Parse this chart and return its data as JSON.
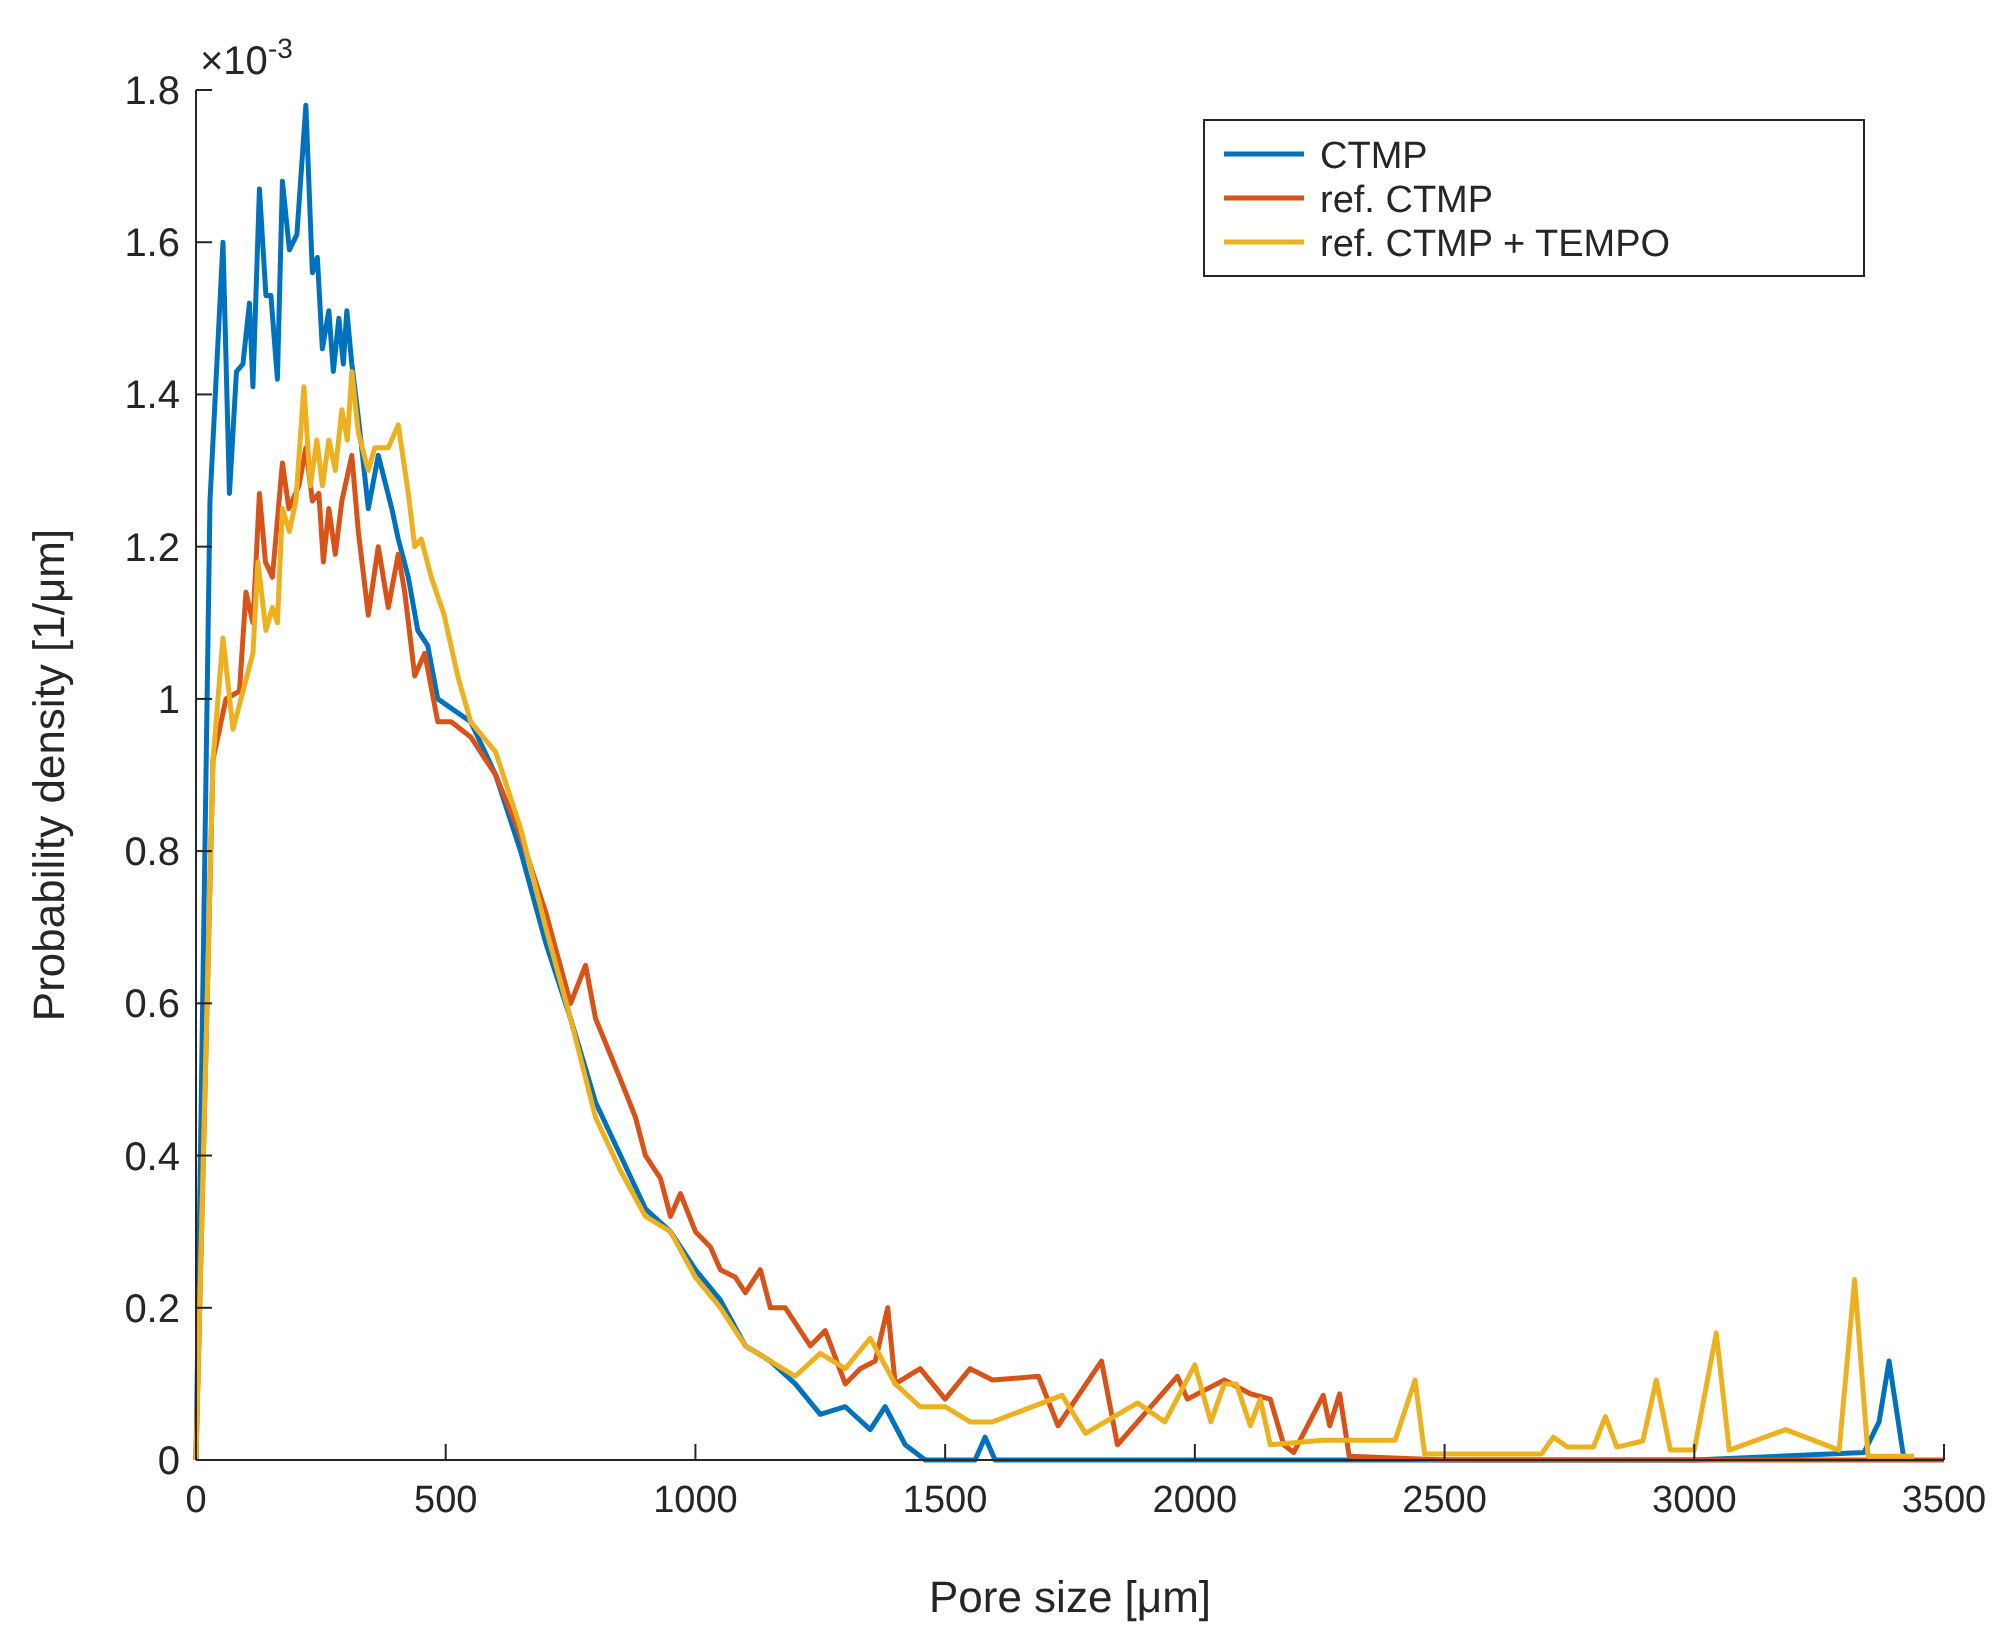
{
  "chart_data": {
    "type": "line",
    "xlabel": "Pore size [μm]",
    "ylabel": "Probability density [1/μm]",
    "annotations": [
      "×10$^{-3}$"
    ],
    "xlim": [
      0,
      3500
    ],
    "ylim": [
      0,
      1.8
    ],
    "xticks": [
      0,
      500,
      1000,
      1500,
      2000,
      2500,
      3000,
      3500
    ],
    "yticks": [
      0,
      0.2,
      0.4,
      0.6,
      0.8,
      1,
      1.2,
      1.4,
      1.6,
      1.8
    ],
    "grid": false,
    "legend": "top right",
    "marker": "none",
    "line_style": "solid",
    "series": [
      {
        "name": "CTMP",
        "color": "#0072bd",
        "x": [
          0,
          28,
          54,
          67,
          81,
          94,
          107,
          114,
          127,
          140,
          150,
          163,
          173,
          187,
          202,
          220,
          233,
          243,
          253,
          266,
          275,
          286,
          295,
          302,
          312,
          325,
          345,
          365,
          392,
          405,
          425,
          444,
          464,
          484,
          550,
          600,
          650,
          700,
          750,
          800,
          850,
          900,
          950,
          1000,
          1050,
          1100,
          1150,
          1200,
          1250,
          1300,
          1350,
          1380,
          1420,
          1460,
          1560,
          1580,
          1600,
          2000,
          2500,
          3000,
          3340,
          3370,
          3390,
          3420
        ],
        "values": [
          0,
          1.26,
          1.6,
          1.27,
          1.43,
          1.44,
          1.52,
          1.41,
          1.67,
          1.53,
          1.53,
          1.42,
          1.68,
          1.59,
          1.61,
          1.78,
          1.56,
          1.58,
          1.46,
          1.51,
          1.43,
          1.5,
          1.44,
          1.51,
          1.44,
          1.37,
          1.25,
          1.32,
          1.25,
          1.21,
          1.16,
          1.09,
          1.07,
          1.0,
          0.97,
          0.9,
          0.8,
          0.68,
          0.58,
          0.47,
          0.4,
          0.33,
          0.3,
          0.25,
          0.21,
          0.15,
          0.13,
          0.1,
          0.06,
          0.07,
          0.04,
          0.07,
          0.02,
          0,
          0,
          0.03,
          0,
          0,
          0,
          0,
          0.01,
          0.05,
          0.13,
          0
        ]
      },
      {
        "name": "ref. CTMP",
        "color": "#d95319",
        "x": [
          0,
          34,
          60,
          87,
          100,
          114,
          127,
          139,
          153,
          173,
          186,
          206,
          220,
          233,
          246,
          255,
          266,
          279,
          292,
          312,
          325,
          345,
          365,
          385,
          405,
          418,
          438,
          458,
          484,
          511,
          550,
          600,
          650,
          700,
          750,
          780,
          800,
          850,
          880,
          900,
          930,
          950,
          970,
          1000,
          1030,
          1050,
          1080,
          1100,
          1130,
          1150,
          1180,
          1200,
          1230,
          1260,
          1300,
          1330,
          1360,
          1385,
          1400,
          1450,
          1500,
          1550,
          1595,
          1687,
          1726,
          1813,
          1845,
          1965,
          1985,
          2059,
          2111,
          2151,
          2178,
          2198,
          2257,
          2270,
          2290,
          2309,
          2500,
          3000,
          3500
        ],
        "values": [
          0,
          0.92,
          1.0,
          1.01,
          1.14,
          1.1,
          1.27,
          1.18,
          1.16,
          1.31,
          1.25,
          1.28,
          1.33,
          1.26,
          1.27,
          1.18,
          1.25,
          1.19,
          1.26,
          1.32,
          1.22,
          1.11,
          1.2,
          1.12,
          1.19,
          1.14,
          1.03,
          1.06,
          0.97,
          0.97,
          0.95,
          0.9,
          0.82,
          0.72,
          0.6,
          0.65,
          0.58,
          0.5,
          0.45,
          0.4,
          0.37,
          0.32,
          0.35,
          0.3,
          0.28,
          0.25,
          0.24,
          0.22,
          0.25,
          0.2,
          0.2,
          0.18,
          0.15,
          0.17,
          0.1,
          0.12,
          0.13,
          0.2,
          0.1,
          0.12,
          0.08,
          0.12,
          0.105,
          0.11,
          0.045,
          0.13,
          0.02,
          0.11,
          0.08,
          0.105,
          0.087,
          0.08,
          0.02,
          0.01,
          0.085,
          0.045,
          0.087,
          0.005,
          0,
          0,
          0
        ]
      },
      {
        "name": "ref. CTMP + TEMPO",
        "color": "#edb120",
        "x": [
          0,
          34,
          54,
          74,
          94,
          114,
          124,
          140,
          153,
          163,
          173,
          187,
          200,
          216,
          229,
          242,
          253,
          266,
          279,
          292,
          303,
          312,
          325,
          345,
          358,
          385,
          405,
          425,
          438,
          451,
          471,
          497,
          524,
          550,
          600,
          650,
          700,
          750,
          800,
          850,
          900,
          950,
          1000,
          1050,
          1100,
          1150,
          1200,
          1250,
          1300,
          1350,
          1400,
          1450,
          1500,
          1550,
          1595,
          1734,
          1781,
          1885,
          1940,
          2000,
          2032,
          2059,
          2083,
          2111,
          2131,
          2151,
          2257,
          2401,
          2441,
          2460,
          2694,
          2718,
          2746,
          2798,
          2822,
          2845,
          2897,
          2924,
          2952,
          3000,
          3044,
          3070,
          3183,
          3290,
          3321,
          3348,
          3440
        ],
        "values": [
          0,
          0.92,
          1.08,
          0.96,
          1.01,
          1.06,
          1.18,
          1.09,
          1.12,
          1.1,
          1.25,
          1.22,
          1.26,
          1.41,
          1.28,
          1.34,
          1.28,
          1.34,
          1.3,
          1.38,
          1.34,
          1.43,
          1.35,
          1.3,
          1.33,
          1.33,
          1.36,
          1.27,
          1.2,
          1.21,
          1.16,
          1.11,
          1.03,
          0.97,
          0.93,
          0.83,
          0.7,
          0.58,
          0.45,
          0.38,
          0.32,
          0.3,
          0.24,
          0.2,
          0.15,
          0.13,
          0.11,
          0.14,
          0.12,
          0.16,
          0.1,
          0.07,
          0.07,
          0.05,
          0.05,
          0.085,
          0.035,
          0.075,
          0.05,
          0.125,
          0.05,
          0.1,
          0.1,
          0.045,
          0.08,
          0.02,
          0.026,
          0.026,
          0.105,
          0.008,
          0.008,
          0.03,
          0.017,
          0.017,
          0.057,
          0.017,
          0.025,
          0.105,
          0.013,
          0.013,
          0.167,
          0.013,
          0.04,
          0.013,
          0.237,
          0.005,
          0.005
        ]
      }
    ]
  }
}
